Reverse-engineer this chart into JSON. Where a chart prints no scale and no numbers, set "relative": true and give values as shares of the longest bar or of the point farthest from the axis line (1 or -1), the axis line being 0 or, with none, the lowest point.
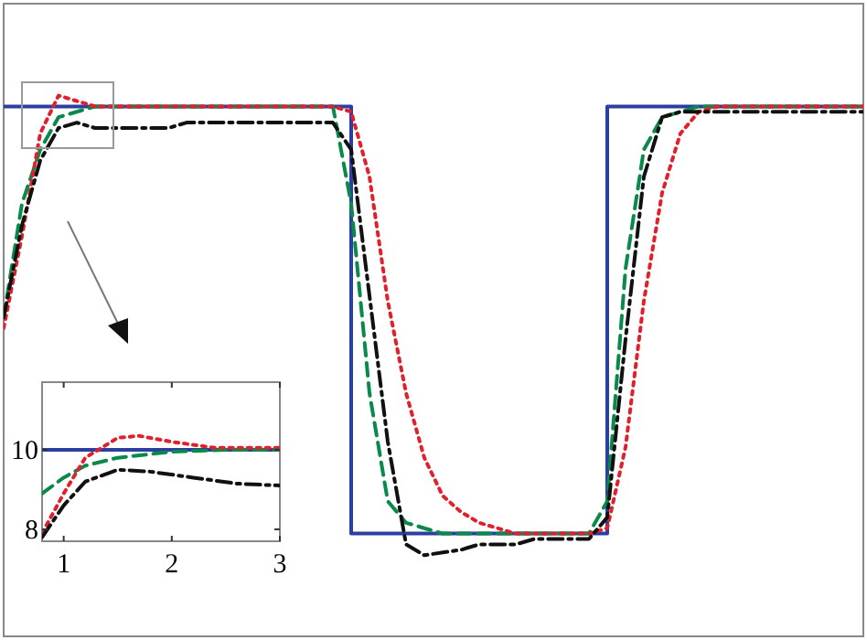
{
  "chart_data": [
    {
      "type": "line",
      "relative": true,
      "categories": [
        null,
        null,
        null,
        null,
        null,
        null,
        null,
        null,
        null,
        null,
        null,
        null,
        null,
        null,
        null,
        null,
        null,
        null,
        null,
        null,
        null,
        null,
        null,
        null,
        null,
        null,
        null,
        null,
        null,
        null,
        null,
        null,
        null,
        null,
        null,
        null,
        null,
        null,
        null,
        null,
        null,
        null,
        null,
        null,
        null,
        null,
        null,
        null
      ],
      "series": [
        {
          "type": "step",
          "color": "#2b3fa0",
          "line_style": "solid",
          "values": [
            0.98,
            0.98,
            0.98,
            0.98,
            0.98,
            0.98,
            0.98,
            0.98,
            0.98,
            0.98,
            0.98,
            0.98,
            0.98,
            0.98,
            0.98,
            0.98,
            0.98,
            0.98,
            0.98,
            0.19,
            0.19,
            0.19,
            0.19,
            0.19,
            0.19,
            0.19,
            0.19,
            0.19,
            0.19,
            0.19,
            0.19,
            0.19,
            0.19,
            0.98,
            0.98,
            0.98,
            0.98,
            0.98,
            0.98,
            0.98,
            0.98,
            0.98,
            0.98,
            0.98,
            0.98,
            0.98,
            0.98,
            0.98
          ]
        },
        {
          "color": "#0a8a4a",
          "line_style": "dashed",
          "values": [
            0.59,
            0.8,
            0.9,
            0.96,
            0.97,
            0.98,
            0.98,
            0.98,
            0.98,
            0.98,
            0.98,
            0.98,
            0.98,
            0.98,
            0.98,
            0.98,
            0.98,
            0.98,
            0.98,
            0.8,
            0.45,
            0.25,
            0.21,
            0.2,
            0.19,
            0.19,
            0.19,
            0.19,
            0.19,
            0.19,
            0.19,
            0.19,
            0.19,
            0.25,
            0.68,
            0.9,
            0.96,
            0.97,
            0.98,
            0.98,
            0.98,
            0.98,
            0.98,
            0.98,
            0.98,
            0.98,
            0.98,
            0.98
          ]
        },
        {
          "color": "#e0202a",
          "line_style": "dotted",
          "values": [
            0.57,
            0.74,
            0.93,
            1.0,
            0.99,
            0.98,
            0.98,
            0.98,
            0.98,
            0.98,
            0.98,
            0.98,
            0.98,
            0.98,
            0.98,
            0.98,
            0.98,
            0.98,
            0.98,
            0.97,
            0.85,
            0.62,
            0.45,
            0.33,
            0.26,
            0.23,
            0.21,
            0.2,
            0.19,
            0.19,
            0.19,
            0.19,
            0.19,
            0.2,
            0.35,
            0.62,
            0.82,
            0.93,
            0.97,
            0.98,
            0.98,
            0.98,
            0.98,
            0.98,
            0.98,
            0.98,
            0.98,
            0.98
          ]
        },
        {
          "color": "#111111",
          "line_style": "dashdot",
          "values": [
            0.59,
            0.76,
            0.88,
            0.94,
            0.95,
            0.94,
            0.94,
            0.94,
            0.94,
            0.94,
            0.95,
            0.95,
            0.95,
            0.95,
            0.95,
            0.95,
            0.95,
            0.95,
            0.95,
            0.9,
            0.63,
            0.36,
            0.17,
            0.15,
            0.155,
            0.16,
            0.17,
            0.17,
            0.17,
            0.18,
            0.18,
            0.18,
            0.18,
            0.22,
            0.55,
            0.85,
            0.96,
            0.97,
            0.97,
            0.97,
            0.97,
            0.97,
            0.97,
            0.97,
            0.97,
            0.97,
            0.97,
            0.97
          ]
        }
      ]
    },
    {
      "type": "line",
      "xlim": [
        0.8,
        3
      ],
      "ylim": [
        7.7,
        11.7
      ],
      "xticks": [
        1,
        2,
        3
      ],
      "yticks": [
        8,
        10
      ],
      "series": [
        {
          "color": "#2b3fa0",
          "line_style": "solid",
          "x": [
            0.8,
            3
          ],
          "values": [
            10,
            10
          ]
        },
        {
          "color": "#0a8a4a",
          "line_style": "dashed",
          "x": [
            0.8,
            1.0,
            1.2,
            1.5,
            2.0,
            2.5,
            3.0
          ],
          "values": [
            8.9,
            9.3,
            9.6,
            9.8,
            9.95,
            10,
            10
          ]
        },
        {
          "color": "#e0202a",
          "line_style": "dotted",
          "x": [
            0.8,
            1.0,
            1.2,
            1.5,
            1.7,
            2.0,
            2.4,
            3.0
          ],
          "values": [
            7.9,
            8.9,
            9.8,
            10.3,
            10.35,
            10.2,
            10.05,
            10.05
          ]
        },
        {
          "color": "#111111",
          "line_style": "dashdot",
          "x": [
            0.8,
            1.0,
            1.2,
            1.5,
            1.8,
            2.2,
            2.6,
            3.0
          ],
          "values": [
            7.8,
            8.6,
            9.2,
            9.5,
            9.45,
            9.3,
            9.15,
            9.1
          ]
        }
      ]
    }
  ]
}
